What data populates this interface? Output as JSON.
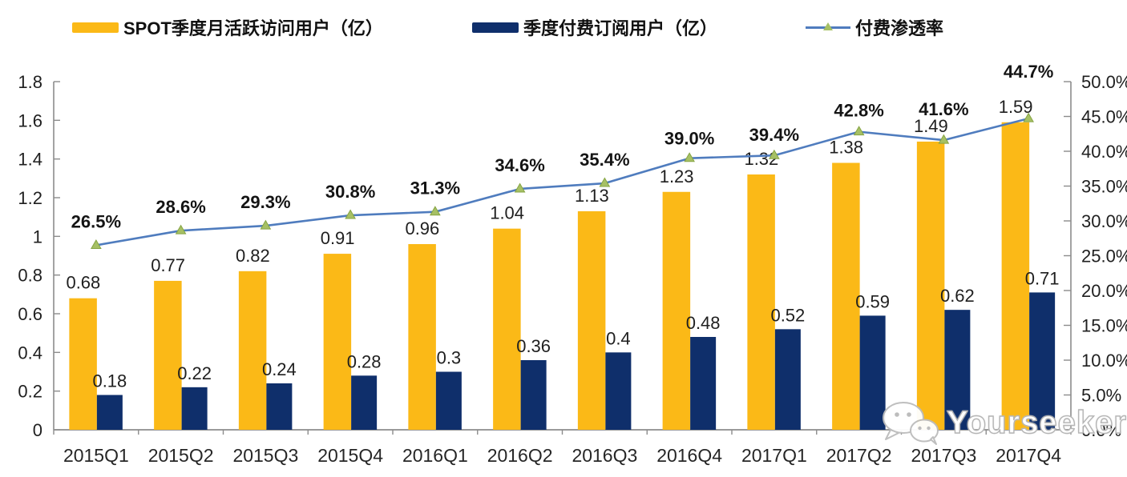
{
  "colors": {
    "mau_bar": "#FBB917",
    "sub_bar": "#0F2F6B",
    "line": "#4F7CBE",
    "marker_fill": "#A6C065",
    "marker_stroke": "#86A443",
    "axis": "#8C8C8C",
    "label_text": "#1F1F1F",
    "background": "#FFFFFF"
  },
  "legend": {
    "mau": {
      "label": "SPOT季度月活跃访问用户（亿）",
      "color": "#FBB917"
    },
    "sub": {
      "label": "季度付费订阅用户（亿）",
      "color": "#0F2F6B"
    },
    "penetration": {
      "label": "付费渗透率",
      "line_color": "#4F7CBE",
      "marker_color": "#A6C065"
    }
  },
  "watermark": {
    "text": "Yourseeker",
    "icon": "wechat-icon"
  },
  "chart_data": {
    "type": "combo-bar-line",
    "legend_position": "top",
    "grid": false,
    "categories": [
      "2015Q1",
      "2015Q2",
      "2015Q3",
      "2015Q4",
      "2016Q1",
      "2016Q2",
      "2016Q3",
      "2016Q4",
      "2017Q1",
      "2017Q2",
      "2017Q3",
      "2017Q4"
    ],
    "series": [
      {
        "name": "SPOT季度月活跃访问用户（亿）",
        "type": "bar",
        "axis": "left",
        "color": "#FBB917",
        "values": [
          0.68,
          0.77,
          0.82,
          0.91,
          0.96,
          1.04,
          1.13,
          1.23,
          1.32,
          1.38,
          1.49,
          1.59
        ],
        "labels": [
          "0.68",
          "0.77",
          "0.82",
          "0.91",
          "0.96",
          "1.04",
          "1.13",
          "1.23",
          "1.32",
          "1.38",
          "1.49",
          "1.59"
        ]
      },
      {
        "name": "季度付费订阅用户（亿）",
        "type": "bar",
        "axis": "left",
        "color": "#0F2F6B",
        "values": [
          0.18,
          0.22,
          0.24,
          0.28,
          0.3,
          0.36,
          0.4,
          0.48,
          0.52,
          0.59,
          0.62,
          0.71
        ],
        "labels": [
          "0.18",
          "0.22",
          "0.24",
          "0.28",
          "0.3",
          "0.36",
          "0.4",
          "0.48",
          "0.52",
          "0.59",
          "0.62",
          "0.71"
        ]
      },
      {
        "name": "付费渗透率",
        "type": "line",
        "axis": "right",
        "color": "#4F7CBE",
        "marker": "triangle",
        "marker_color": "#A6C065",
        "values": [
          26.5,
          28.6,
          29.3,
          30.8,
          31.3,
          34.6,
          35.4,
          39.0,
          39.4,
          42.8,
          41.6,
          44.7
        ],
        "labels": [
          "26.5%",
          "28.6%",
          "29.3%",
          "30.8%",
          "31.3%",
          "34.6%",
          "35.4%",
          "39.0%",
          "39.4%",
          "42.8%",
          "41.6%",
          "44.7%"
        ]
      }
    ],
    "left_axis": {
      "min": 0,
      "max": 1.8,
      "step": 0.2,
      "tick_labels": [
        "1.8",
        "1.6",
        "1.4",
        "1.2",
        "1",
        "0.8",
        "0.6",
        "0.4",
        "0.2",
        "0"
      ]
    },
    "right_axis": {
      "min": 0,
      "max": 50,
      "step": 5,
      "tick_labels": [
        "50.0%",
        "45.0%",
        "40.0%",
        "35.0%",
        "30.0%",
        "25.0%",
        "20.0%",
        "15.0%",
        "10.0%",
        "5.0%",
        "0.0%"
      ]
    }
  }
}
